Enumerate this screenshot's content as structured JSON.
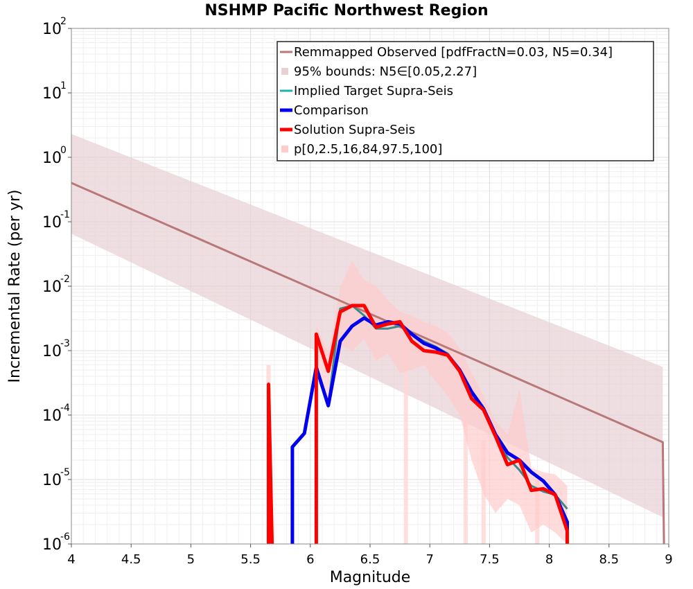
{
  "chart_data": {
    "type": "line",
    "title": "NSHMP Pacific Northwest Region",
    "xlabel": "Magnitude",
    "ylabel": "Incremental Rate (per yr)",
    "xlim": [
      4,
      9
    ],
    "ylim": [
      1e-06,
      100
    ],
    "yscale": "log",
    "grid": true,
    "legend_position": "top-right",
    "x_ticks": [
      "4",
      "4.5",
      "5",
      "5.5",
      "6",
      "6.5",
      "7",
      "7.5",
      "8",
      "8.5",
      "9"
    ],
    "y_ticks": [
      {
        "base": "10",
        "exp": "2"
      },
      {
        "base": "10",
        "exp": "1"
      },
      {
        "base": "10",
        "exp": "0"
      },
      {
        "base": "10",
        "exp": "-1"
      },
      {
        "base": "10",
        "exp": "-2"
      },
      {
        "base": "10",
        "exp": "-3"
      },
      {
        "base": "10",
        "exp": "-4"
      },
      {
        "base": "10",
        "exp": "-5"
      },
      {
        "base": "10",
        "exp": "-6"
      }
    ],
    "legend": [
      {
        "label": "Remmapped Observed [pdfFractN=0.03, N5=0.34]",
        "color": "#b87878",
        "style": "line"
      },
      {
        "label": "95% bounds: N5∈[0.05,2.27]",
        "color": "#e8d0d4",
        "style": "square"
      },
      {
        "label": "Implied Target Supra-Seis",
        "color": "#20b0b0",
        "style": "line"
      },
      {
        "label": "Comparison",
        "color": "#0000ee",
        "style": "thick-line"
      },
      {
        "label": "Solution Supra-Seis",
        "color": "#ff0000",
        "style": "thick-line"
      },
      {
        "label": "p[0,2.5,16,84,97.5,100]",
        "color": "#ffcccc",
        "style": "square"
      }
    ],
    "series": [
      {
        "name": "Remmapped Observed [pdfFractN=0.03, N5=0.34]",
        "color": "#b87878",
        "points": [
          [
            4.0,
            0.4
          ],
          [
            8.95,
            3.8e-05
          ],
          [
            8.96,
            1e-06
          ]
        ]
      },
      {
        "name": "95% bounds: N5∈[0.05,2.27]",
        "color": "#e8d0d4",
        "band": true,
        "upper": [
          [
            4.0,
            2.3
          ],
          [
            8.95,
            0.00056
          ]
        ],
        "lower": [
          [
            4.0,
            0.065
          ],
          [
            8.95,
            2.6e-06
          ]
        ]
      },
      {
        "name": "p[0,2.5,16,84,97.5,100]",
        "color": "#ffcccc",
        "band": true,
        "upper": [
          [
            6.05,
            0.0025
          ],
          [
            6.15,
            0.0009
          ],
          [
            6.25,
            0.0095
          ],
          [
            6.35,
            0.025
          ],
          [
            6.45,
            0.0125
          ],
          [
            6.55,
            0.01
          ],
          [
            6.65,
            0.006
          ],
          [
            6.75,
            0.004
          ],
          [
            6.85,
            0.0035
          ],
          [
            6.95,
            0.0028
          ],
          [
            7.05,
            0.0024
          ],
          [
            7.15,
            0.0019
          ],
          [
            7.25,
            0.0011
          ],
          [
            7.35,
            0.00045
          ],
          [
            7.45,
            0.0002
          ],
          [
            7.55,
            8e-05
          ],
          [
            7.65,
            5e-05
          ],
          [
            7.75,
            0.00025
          ],
          [
            7.85,
            1.5e-05
          ],
          [
            7.95,
            1.3e-05
          ],
          [
            8.05,
            1.2e-05
          ],
          [
            8.15,
            8e-06
          ]
        ],
        "lower": [
          [
            6.05,
            0.0005
          ],
          [
            6.15,
            0.00012
          ],
          [
            6.25,
            0.0012
          ],
          [
            6.35,
            0.001
          ],
          [
            6.45,
            0.0015
          ],
          [
            6.55,
            0.0007
          ],
          [
            6.65,
            0.0009
          ],
          [
            6.75,
            0.00045
          ],
          [
            6.85,
            0.0005
          ],
          [
            6.95,
            0.0006
          ],
          [
            7.05,
            0.00033
          ],
          [
            7.15,
            0.0002
          ],
          [
            7.25,
            0.0001
          ],
          [
            7.35,
            2e-05
          ],
          [
            7.45,
            6e-06
          ],
          [
            7.55,
            3e-06
          ],
          [
            7.65,
            5e-06
          ],
          [
            7.75,
            4e-06
          ],
          [
            7.85,
            1.5e-06
          ],
          [
            7.95,
            2e-06
          ],
          [
            8.05,
            1.5e-06
          ],
          [
            8.15,
            1e-06
          ]
        ]
      },
      {
        "name": "Implied Target Supra-Seis",
        "color": "#3a8a8a",
        "points": [
          [
            6.05,
            0.0005
          ],
          [
            6.15,
            0.00014
          ],
          [
            6.25,
            0.0045
          ],
          [
            6.35,
            0.005
          ],
          [
            6.45,
            0.0035
          ],
          [
            6.55,
            0.0022
          ],
          [
            6.65,
            0.0022
          ],
          [
            6.75,
            0.0024
          ],
          [
            6.85,
            0.0018
          ],
          [
            6.95,
            0.0014
          ],
          [
            7.05,
            0.00115
          ],
          [
            7.15,
            0.0009
          ],
          [
            7.25,
            0.0005
          ],
          [
            7.35,
            0.00022
          ],
          [
            7.45,
            0.00012
          ],
          [
            7.55,
            5e-05
          ],
          [
            7.65,
            2.2e-05
          ],
          [
            7.75,
            1.4e-05
          ],
          [
            7.85,
            8e-06
          ],
          [
            7.95,
            6.5e-06
          ],
          [
            8.05,
            5.8e-06
          ],
          [
            8.15,
            3.5e-06
          ]
        ]
      },
      {
        "name": "Comparison",
        "color": "#0000ee",
        "points": [
          [
            5.85,
            1e-06
          ],
          [
            5.85,
            3.2e-05
          ],
          [
            5.95,
            5.2e-05
          ],
          [
            6.05,
            0.00055
          ],
          [
            6.15,
            0.00014
          ],
          [
            6.25,
            0.0014
          ],
          [
            6.35,
            0.0024
          ],
          [
            6.45,
            0.0032
          ],
          [
            6.55,
            0.0025
          ],
          [
            6.65,
            0.0028
          ],
          [
            6.75,
            0.0026
          ],
          [
            6.85,
            0.0018
          ],
          [
            6.95,
            0.0013
          ],
          [
            7.05,
            0.0011
          ],
          [
            7.15,
            0.00085
          ],
          [
            7.25,
            0.0005
          ],
          [
            7.35,
            0.00023
          ],
          [
            7.45,
            0.000125
          ],
          [
            7.55,
            5e-05
          ],
          [
            7.65,
            2.6e-05
          ],
          [
            7.75,
            2e-05
          ],
          [
            7.85,
            1.3e-05
          ],
          [
            7.95,
            9.5e-06
          ],
          [
            8.05,
            5.8e-06
          ],
          [
            8.15,
            2.2e-06
          ],
          [
            8.15,
            1e-06
          ]
        ]
      },
      {
        "name": "Solution Supra-Seis",
        "color": "#ff0000",
        "points": [
          [
            5.65,
            1e-06
          ],
          [
            5.65,
            0.0003
          ],
          [
            5.68,
            1e-06
          ]
        ],
        "points2": [
          [
            6.05,
            1e-06
          ],
          [
            6.05,
            0.0018
          ],
          [
            6.15,
            0.00048
          ],
          [
            6.25,
            0.004
          ],
          [
            6.35,
            0.005
          ],
          [
            6.45,
            0.005
          ],
          [
            6.55,
            0.0023
          ],
          [
            6.65,
            0.0026
          ],
          [
            6.75,
            0.0028
          ],
          [
            6.85,
            0.0014
          ],
          [
            6.95,
            0.001
          ],
          [
            7.05,
            0.00095
          ],
          [
            7.15,
            0.00085
          ],
          [
            7.25,
            0.00048
          ],
          [
            7.35,
            0.00018
          ],
          [
            7.45,
            0.00012
          ],
          [
            7.55,
            4.7e-05
          ],
          [
            7.65,
            1.7e-05
          ],
          [
            7.75,
            2e-05
          ],
          [
            7.85,
            6.8e-06
          ],
          [
            7.95,
            7.2e-06
          ],
          [
            8.05,
            5.8e-06
          ],
          [
            8.15,
            1.6e-06
          ],
          [
            8.15,
            1e-06
          ]
        ]
      }
    ]
  }
}
